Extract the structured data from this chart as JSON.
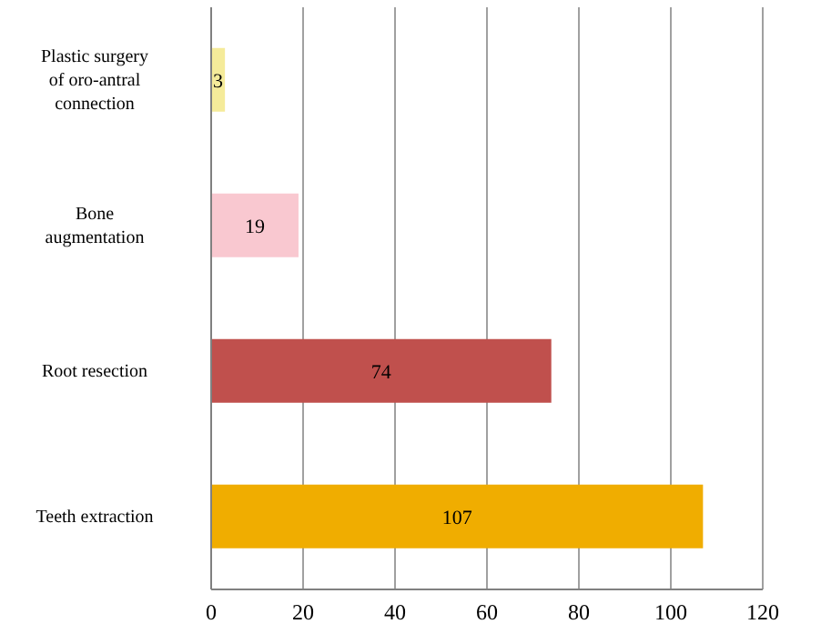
{
  "chart_data": {
    "type": "bar",
    "orientation": "horizontal",
    "categories": [
      "Plastic surgery of oro-antral connection",
      "Bone augmentation",
      "Root resection",
      "Teeth extraction"
    ],
    "values": [
      3,
      19,
      74,
      107
    ],
    "colors": [
      "#f5eb9a",
      "#f9c8d0",
      "#c0504d",
      "#f0ad00"
    ],
    "xlim": [
      0,
      120
    ],
    "xticks": [
      0,
      20,
      40,
      60,
      80,
      100,
      120
    ],
    "grid": "x",
    "data_labels": true
  }
}
